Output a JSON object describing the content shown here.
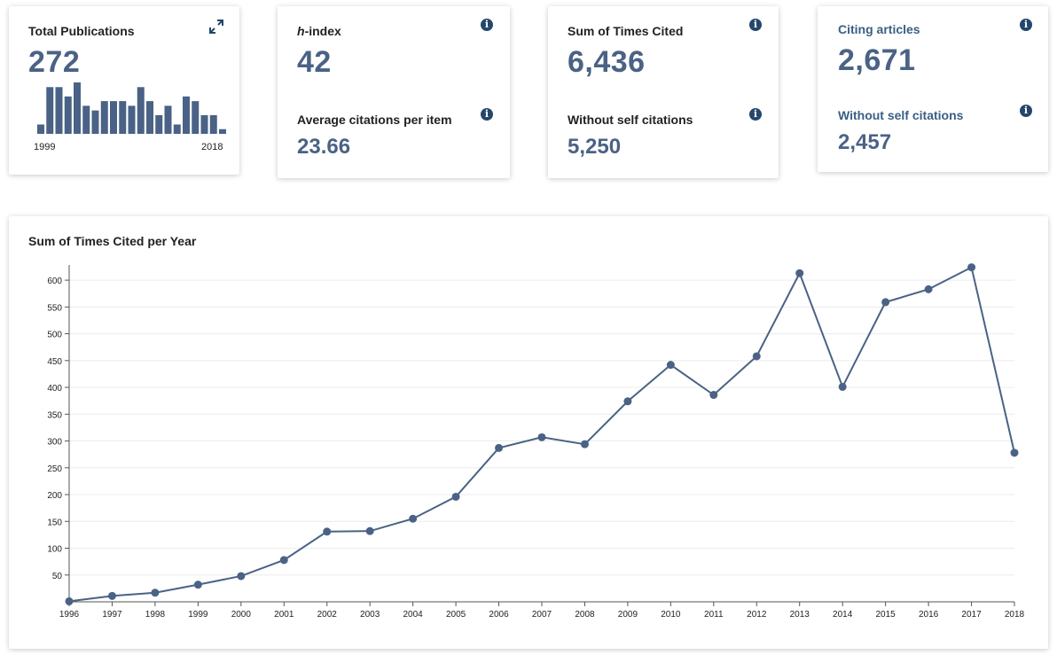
{
  "cards": {
    "total_publications": {
      "label": "Total Publications",
      "value": "272",
      "spark_values": [
        2,
        10,
        10,
        8,
        11,
        6,
        5,
        7,
        7,
        7,
        6,
        10,
        7,
        4,
        6,
        2,
        8,
        7,
        4,
        4,
        1
      ],
      "year_start": "1999",
      "year_end": "2018"
    },
    "h_index": {
      "label_italic": "h",
      "label_rest": "-index",
      "value": "42",
      "avg_label": "Average citations per item",
      "avg_value": "23.66"
    },
    "times_cited": {
      "label": "Sum of Times Cited",
      "value": "6,436",
      "self_label": "Without self citations",
      "self_value": "5,250"
    },
    "citing_articles": {
      "label": "Citing articles",
      "value": "2,671",
      "self_label": "Without self citations",
      "self_value": "2,457"
    }
  },
  "icons": {
    "info": "i"
  },
  "colors": {
    "accent": "#4a6285",
    "link": "#3a5f85",
    "info_icon": "#24476b",
    "line": "#4a6285"
  },
  "chart_data": {
    "type": "line",
    "title": "Sum of Times Cited per Year",
    "xlabel": "",
    "ylabel": "",
    "x": [
      "1996",
      "1997",
      "1998",
      "1999",
      "2000",
      "2001",
      "2002",
      "2003",
      "2004",
      "2005",
      "2006",
      "2007",
      "2008",
      "2009",
      "2010",
      "2011",
      "2012",
      "2013",
      "2014",
      "2015",
      "2016",
      "2017",
      "2018"
    ],
    "values": [
      1,
      11,
      17,
      32,
      48,
      78,
      131,
      132,
      155,
      196,
      287,
      307,
      294,
      374,
      442,
      386,
      458,
      613,
      401,
      559,
      583,
      624,
      278
    ],
    "ylim": [
      0,
      620
    ],
    "yticks": [
      50,
      100,
      150,
      200,
      250,
      300,
      350,
      400,
      450,
      500,
      550,
      600
    ],
    "grid": true
  }
}
